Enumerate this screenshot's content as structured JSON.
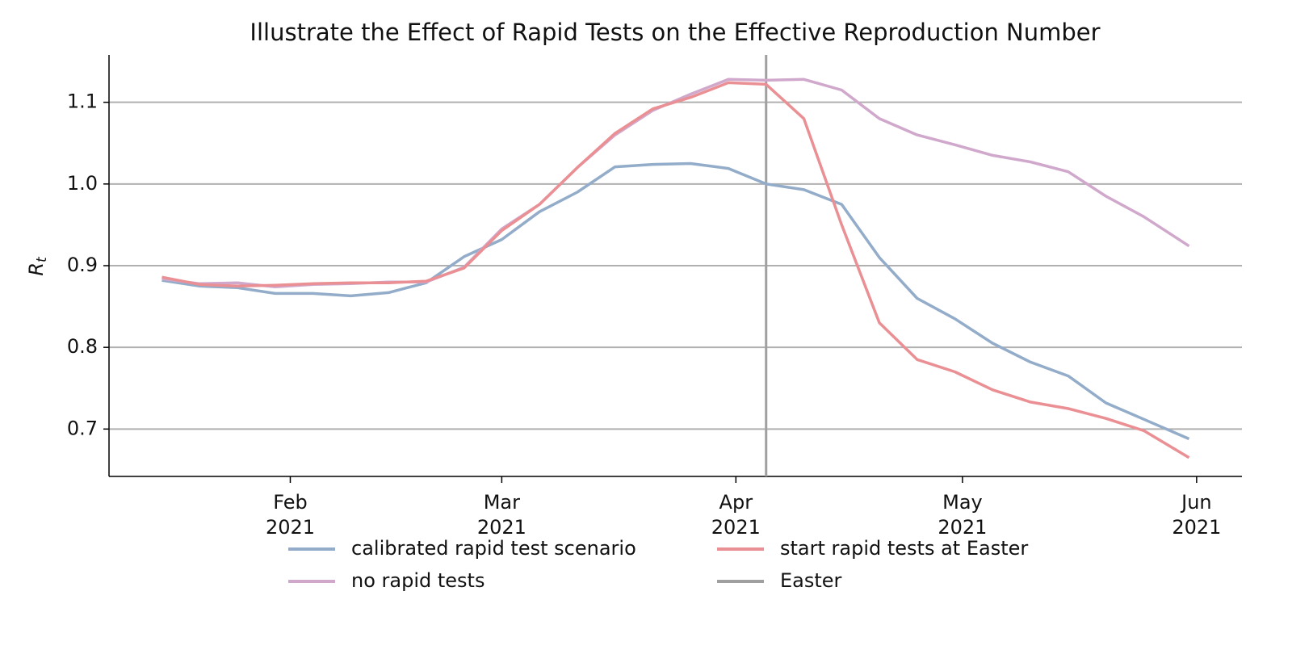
{
  "chart_data": {
    "type": "line",
    "title": "Illustrate the Effect of Rapid Tests on the Effective Reproduction Number",
    "ylabel_base": "R",
    "ylabel_subscript": "t",
    "x": [
      "2021-01-15",
      "2021-01-20",
      "2021-01-25",
      "2021-01-30",
      "2021-02-04",
      "2021-02-09",
      "2021-02-14",
      "2021-02-19",
      "2021-02-24",
      "2021-03-01",
      "2021-03-06",
      "2021-03-11",
      "2021-03-16",
      "2021-03-21",
      "2021-03-26",
      "2021-03-31",
      "2021-04-05",
      "2021-04-10",
      "2021-04-15",
      "2021-04-20",
      "2021-04-25",
      "2021-04-30",
      "2021-05-05",
      "2021-05-10",
      "2021-05-15",
      "2021-05-20",
      "2021-05-25",
      "2021-05-31"
    ],
    "series": [
      {
        "name": "calibrated rapid test scenario",
        "color": "#92acc9",
        "values": [
          0.882,
          0.875,
          0.873,
          0.866,
          0.866,
          0.863,
          0.867,
          0.879,
          0.911,
          0.932,
          0.966,
          0.99,
          1.021,
          1.024,
          1.025,
          1.019,
          1.0,
          0.993,
          0.975,
          0.91,
          0.86,
          0.835,
          0.805,
          0.782,
          0.765,
          0.732,
          0.712,
          0.688
        ]
      },
      {
        "name": "no rapid tests",
        "color": "#d0a8cc",
        "values": [
          0.884,
          0.878,
          0.879,
          0.874,
          0.877,
          0.878,
          0.88,
          0.88,
          0.898,
          0.945,
          0.975,
          1.02,
          1.06,
          1.09,
          1.11,
          1.128,
          1.127,
          1.128,
          1.115,
          1.08,
          1.06,
          1.048,
          1.035,
          1.027,
          1.015,
          0.985,
          0.96,
          0.924
        ]
      },
      {
        "name": "start rapid tests at Easter",
        "color": "#ea8f93",
        "values": [
          0.886,
          0.877,
          0.875,
          0.876,
          0.878,
          0.879,
          0.879,
          0.881,
          0.897,
          0.943,
          0.975,
          1.02,
          1.062,
          1.092,
          1.106,
          1.124,
          1.122,
          1.08,
          0.95,
          0.83,
          0.785,
          0.77,
          0.748,
          0.733,
          0.725,
          0.713,
          0.698,
          0.665
        ]
      }
    ],
    "vlines": [
      {
        "name": "Easter",
        "x": "2021-04-05",
        "color": "#a0a0a0"
      }
    ],
    "xlim": [
      "2021-01-08",
      "2021-06-07"
    ],
    "xticks": [
      {
        "value": "2021-02-01",
        "label": [
          "Feb",
          "2021"
        ]
      },
      {
        "value": "2021-03-01",
        "label": [
          "Mar",
          "2021"
        ]
      },
      {
        "value": "2021-04-01",
        "label": [
          "Apr",
          "2021"
        ]
      },
      {
        "value": "2021-05-01",
        "label": [
          "May",
          "2021"
        ]
      },
      {
        "value": "2021-06-01",
        "label": [
          "Jun",
          "2021"
        ]
      }
    ],
    "ylim": [
      0.642,
      1.158
    ],
    "yticks": [
      {
        "value": 0.7,
        "label": "0.7"
      },
      {
        "value": 0.8,
        "label": "0.8"
      },
      {
        "value": 0.9,
        "label": "0.9"
      },
      {
        "value": 1.0,
        "label": "1.0"
      },
      {
        "value": 1.1,
        "label": "1.1"
      }
    ],
    "grid": true,
    "legend": "bottom"
  }
}
